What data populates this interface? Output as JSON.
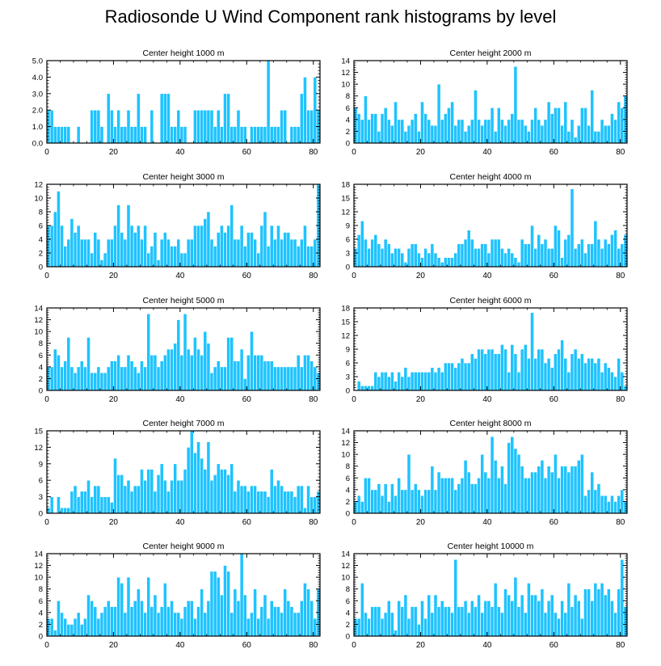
{
  "title": "Radiosonde U Wind Component rank histograms by level",
  "colors": {
    "bar": "#1ec3ff",
    "bar_edge": "#ffffff",
    "axis": "#000000",
    "background": "#ffffff"
  },
  "chart_data": [
    {
      "type": "bar",
      "title": "Center height 1000 m",
      "xlim": [
        0,
        82
      ],
      "ylim": [
        0,
        5
      ],
      "xticks": [
        0,
        20,
        40,
        60,
        80
      ],
      "yticks": [
        0,
        1,
        2,
        3,
        4,
        5
      ],
      "ytick_labels": [
        "0.0",
        "1.0",
        "2.0",
        "3.0",
        "4.0",
        "5.0"
      ],
      "values": [
        2,
        2,
        1,
        1,
        1,
        1,
        1,
        0,
        0,
        1,
        0,
        0,
        0,
        2,
        2,
        2,
        1,
        0,
        3,
        2,
        1,
        2,
        1,
        1,
        2,
        1,
        1,
        3,
        1,
        1,
        0,
        2,
        0,
        0,
        3,
        3,
        3,
        1,
        1,
        2,
        1,
        1,
        0,
        0,
        2,
        2,
        2,
        2,
        2,
        2,
        1,
        2,
        1,
        3,
        3,
        1,
        1,
        2,
        1,
        1,
        0,
        1,
        1,
        1,
        1,
        1,
        5,
        1,
        1,
        1,
        2,
        2,
        0,
        1,
        1,
        1,
        3,
        4,
        2,
        2,
        4,
        2
      ]
    },
    {
      "type": "bar",
      "title": "Center height 2000 m",
      "xlim": [
        0,
        82
      ],
      "ylim": [
        0,
        14
      ],
      "xticks": [
        0,
        20,
        40,
        60,
        80
      ],
      "yticks": [
        0,
        2,
        4,
        6,
        8,
        10,
        12,
        14
      ],
      "ytick_labels": [
        "0",
        "2",
        "4",
        "6",
        "8",
        "10",
        "12",
        "14"
      ],
      "values": [
        6,
        5,
        4,
        8,
        4,
        5,
        5,
        2,
        5,
        6,
        4,
        3,
        7,
        4,
        4,
        2,
        3,
        4,
        5,
        2,
        7,
        5,
        4,
        3,
        3,
        10,
        4,
        5,
        6,
        7,
        3,
        4,
        4,
        2,
        3,
        4,
        9,
        4,
        3,
        4,
        4,
        6,
        2,
        6,
        4,
        3,
        4,
        5,
        13,
        4,
        4,
        3,
        2,
        4,
        6,
        4,
        3,
        4,
        7,
        5,
        6,
        6,
        3,
        7,
        2,
        4,
        1,
        3,
        6,
        6,
        3,
        9,
        2,
        2,
        4,
        3,
        3,
        5,
        4,
        7,
        6,
        8
      ]
    },
    {
      "type": "bar",
      "title": "Center height 3000 m",
      "xlim": [
        0,
        82
      ],
      "ylim": [
        0,
        12
      ],
      "xticks": [
        0,
        20,
        40,
        60,
        80
      ],
      "yticks": [
        0,
        2,
        4,
        6,
        8,
        10,
        12
      ],
      "ytick_labels": [
        "0",
        "2",
        "4",
        "6",
        "8",
        "10",
        "12"
      ],
      "values": [
        6,
        6,
        8,
        11,
        6,
        3,
        4,
        7,
        5,
        6,
        4,
        4,
        4,
        2,
        5,
        4,
        1,
        2,
        4,
        4,
        6,
        9,
        5,
        4,
        9,
        6,
        5,
        6,
        4,
        6,
        2,
        3,
        5,
        1,
        4,
        5,
        4,
        3,
        3,
        4,
        2,
        2,
        4,
        4,
        6,
        6,
        6,
        7,
        8,
        4,
        3,
        5,
        6,
        5,
        6,
        9,
        4,
        4,
        6,
        3,
        5,
        5,
        4,
        2,
        6,
        8,
        3,
        6,
        4,
        6,
        4,
        5,
        5,
        4,
        4,
        3,
        4,
        6,
        3,
        3,
        4,
        12
      ]
    },
    {
      "type": "bar",
      "title": "Center height 4000 m",
      "xlim": [
        0,
        82
      ],
      "ylim": [
        0,
        18
      ],
      "xticks": [
        0,
        20,
        40,
        60,
        80
      ],
      "yticks": [
        0,
        3,
        6,
        9,
        12,
        15,
        18
      ],
      "ytick_labels": [
        "0",
        "3",
        "6",
        "9",
        "12",
        "15",
        "18"
      ],
      "values": [
        4,
        7,
        10,
        6,
        4,
        6,
        7,
        5,
        4,
        6,
        5,
        3,
        4,
        4,
        3,
        1,
        4,
        5,
        5,
        3,
        2,
        4,
        3,
        5,
        3,
        2,
        1,
        2,
        2,
        2,
        3,
        5,
        5,
        6,
        8,
        6,
        4,
        4,
        5,
        5,
        3,
        6,
        6,
        6,
        4,
        3,
        4,
        3,
        2,
        1,
        6,
        5,
        5,
        9,
        4,
        7,
        5,
        6,
        4,
        4,
        9,
        8,
        2,
        6,
        7,
        17,
        4,
        5,
        6,
        3,
        5,
        5,
        10,
        6,
        4,
        6,
        5,
        7,
        8,
        4,
        5,
        7
      ]
    },
    {
      "type": "bar",
      "title": "Center height 5000 m",
      "xlim": [
        0,
        82
      ],
      "ylim": [
        0,
        14
      ],
      "xticks": [
        0,
        20,
        40,
        60,
        80
      ],
      "yticks": [
        0,
        2,
        4,
        6,
        8,
        10,
        12,
        14
      ],
      "ytick_labels": [
        "0",
        "2",
        "4",
        "6",
        "8",
        "10",
        "12",
        "14"
      ],
      "values": [
        4,
        4,
        7,
        6,
        4,
        5,
        9,
        4,
        3,
        4,
        5,
        4,
        9,
        3,
        3,
        4,
        3,
        3,
        4,
        5,
        5,
        6,
        4,
        4,
        6,
        5,
        4,
        3,
        5,
        4,
        13,
        6,
        6,
        4,
        5,
        6,
        7,
        7,
        8,
        12,
        6,
        13,
        7,
        6,
        9,
        7,
        6,
        10,
        8,
        3,
        4,
        5,
        4,
        4,
        9,
        9,
        5,
        5,
        7,
        2,
        6,
        10,
        6,
        6,
        6,
        5,
        5,
        5,
        4,
        4,
        4,
        4,
        4,
        4,
        4,
        6,
        4,
        6,
        6,
        5,
        4,
        3
      ]
    },
    {
      "type": "bar",
      "title": "Center height 6000 m",
      "xlim": [
        0,
        82
      ],
      "ylim": [
        0,
        18
      ],
      "xticks": [
        0,
        20,
        40,
        60,
        80
      ],
      "yticks": [
        0,
        3,
        6,
        9,
        12,
        15,
        18
      ],
      "ytick_labels": [
        "0",
        "3",
        "6",
        "9",
        "12",
        "15",
        "18"
      ],
      "values": [
        0,
        2,
        1,
        1,
        1,
        1,
        4,
        3,
        4,
        4,
        3,
        4,
        2,
        4,
        3,
        5,
        3,
        4,
        4,
        4,
        4,
        4,
        4,
        5,
        4,
        5,
        4,
        6,
        6,
        6,
        5,
        6,
        7,
        6,
        6,
        8,
        7,
        9,
        9,
        8,
        9,
        9,
        8,
        8,
        10,
        9,
        4,
        10,
        8,
        4,
        9,
        10,
        7,
        17,
        7,
        9,
        9,
        6,
        7,
        5,
        8,
        9,
        11,
        7,
        4,
        8,
        9,
        7,
        8,
        6,
        7,
        7,
        6,
        7,
        4,
        6,
        5,
        4,
        3,
        7,
        4,
        1
      ]
    },
    {
      "type": "bar",
      "title": "Center height 7000 m",
      "xlim": [
        0,
        82
      ],
      "ylim": [
        0,
        15
      ],
      "xticks": [
        0,
        20,
        40,
        60,
        80
      ],
      "yticks": [
        0,
        3,
        6,
        9,
        12,
        15
      ],
      "ytick_labels": [
        "0",
        "3",
        "6",
        "9",
        "12",
        "15"
      ],
      "values": [
        1,
        3,
        0,
        3,
        1,
        1,
        1,
        4,
        5,
        3,
        4,
        4,
        6,
        3,
        5,
        5,
        3,
        3,
        3,
        2,
        10,
        7,
        7,
        5,
        6,
        4,
        5,
        5,
        8,
        6,
        8,
        8,
        4,
        7,
        9,
        6,
        4,
        6,
        9,
        6,
        6,
        8,
        12,
        15,
        11,
        13,
        10,
        8,
        13,
        6,
        7,
        9,
        8,
        8,
        7,
        9,
        4,
        6,
        5,
        5,
        4,
        5,
        5,
        4,
        4,
        4,
        3,
        8,
        5,
        6,
        5,
        4,
        4,
        4,
        3,
        5,
        5,
        1,
        5,
        3,
        3,
        4
      ]
    },
    {
      "type": "bar",
      "title": "Center height 8000 m",
      "xlim": [
        0,
        82
      ],
      "ylim": [
        0,
        14
      ],
      "xticks": [
        0,
        20,
        40,
        60,
        80
      ],
      "yticks": [
        0,
        2,
        4,
        6,
        8,
        10,
        12,
        14
      ],
      "ytick_labels": [
        "0",
        "2",
        "4",
        "6",
        "8",
        "10",
        "12",
        "14"
      ],
      "values": [
        2,
        3,
        2,
        6,
        6,
        4,
        4,
        5,
        3,
        5,
        2,
        5,
        3,
        6,
        4,
        4,
        10,
        4,
        5,
        4,
        3,
        4,
        4,
        8,
        4,
        7,
        6,
        6,
        6,
        6,
        4,
        5,
        6,
        9,
        7,
        5,
        5,
        6,
        10,
        7,
        6,
        13,
        9,
        6,
        8,
        5,
        12,
        13,
        11,
        10,
        8,
        6,
        6,
        7,
        7,
        8,
        9,
        6,
        8,
        7,
        10,
        6,
        8,
        8,
        7,
        8,
        8,
        9,
        10,
        3,
        4,
        7,
        4,
        5,
        3,
        3,
        2,
        3,
        2,
        3,
        4,
        2
      ]
    },
    {
      "type": "bar",
      "title": "Center height 9000 m",
      "xlim": [
        0,
        82
      ],
      "ylim": [
        0,
        14
      ],
      "xticks": [
        0,
        20,
        40,
        60,
        80
      ],
      "yticks": [
        0,
        2,
        4,
        6,
        8,
        10,
        12,
        14
      ],
      "ytick_labels": [
        "0",
        "2",
        "4",
        "6",
        "8",
        "10",
        "12",
        "14"
      ],
      "values": [
        3,
        3,
        1,
        6,
        4,
        3,
        2,
        2,
        3,
        4,
        2,
        3,
        7,
        6,
        5,
        3,
        4,
        5,
        6,
        5,
        5,
        10,
        9,
        4,
        10,
        5,
        6,
        8,
        6,
        4,
        10,
        5,
        7,
        4,
        5,
        9,
        5,
        6,
        4,
        4,
        3,
        5,
        6,
        6,
        3,
        5,
        8,
        4,
        6,
        11,
        11,
        10,
        7,
        12,
        11,
        4,
        8,
        6,
        14,
        7,
        3,
        4,
        8,
        3,
        5,
        7,
        3,
        6,
        5,
        5,
        4,
        8,
        6,
        5,
        4,
        4,
        6,
        9,
        8,
        6,
        3,
        8
      ]
    },
    {
      "type": "bar",
      "title": "Center height 10000 m",
      "xlim": [
        0,
        82
      ],
      "ylim": [
        0,
        14
      ],
      "xticks": [
        0,
        20,
        40,
        60,
        80
      ],
      "yticks": [
        0,
        2,
        4,
        6,
        8,
        10,
        12,
        14
      ],
      "ytick_labels": [
        "0",
        "2",
        "4",
        "6",
        "8",
        "10",
        "12",
        "14"
      ],
      "values": [
        3,
        3,
        9,
        4,
        3,
        5,
        5,
        5,
        3,
        4,
        6,
        4,
        1,
        6,
        5,
        7,
        3,
        5,
        5,
        2,
        6,
        3,
        7,
        4,
        7,
        5,
        6,
        5,
        5,
        4,
        13,
        5,
        5,
        6,
        4,
        6,
        5,
        7,
        4,
        6,
        6,
        5,
        9,
        5,
        4,
        8,
        7,
        6,
        10,
        5,
        7,
        4,
        9,
        7,
        7,
        6,
        8,
        4,
        6,
        7,
        4,
        3,
        6,
        4,
        9,
        5,
        7,
        6,
        3,
        8,
        8,
        6,
        9,
        8,
        9,
        7,
        8,
        6,
        4,
        8,
        13,
        5
      ]
    }
  ]
}
